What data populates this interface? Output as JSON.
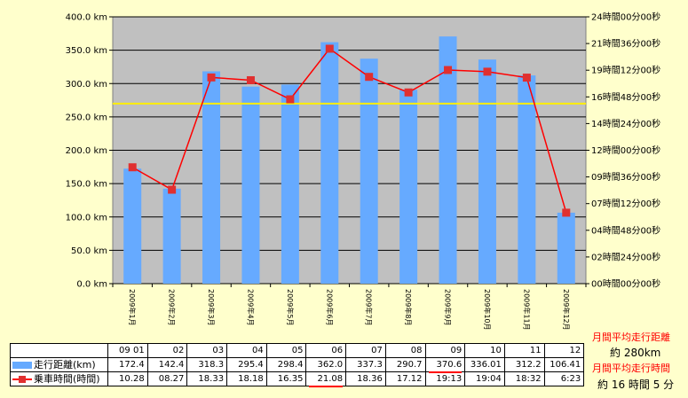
{
  "chart_data": {
    "type": "bar",
    "categories": [
      "2009年1月",
      "2009年2月",
      "2009年3月",
      "2009年4月",
      "2009年5月",
      "2009年6月",
      "2009年7月",
      "2009年8月",
      "2009年9月",
      "2009年10月",
      "2009年11月",
      "2009年12月"
    ],
    "series": [
      {
        "name": "走行距離(km)",
        "type": "bar",
        "axis": "left",
        "color": "#66aaff",
        "values": [
          172.4,
          142.4,
          318.3,
          295.4,
          298.4,
          362.0,
          337.3,
          290.7,
          370.6,
          336.01,
          312.2,
          106.41
        ]
      },
      {
        "name": "乗車時間(時間)",
        "type": "line",
        "axis": "right",
        "color": "#ff0000",
        "marker_color": "#e03030",
        "values_hours": [
          10.467,
          8.45,
          18.55,
          18.3,
          16.583,
          21.133,
          18.6,
          17.2,
          19.217,
          19.067,
          18.533,
          6.383
        ]
      }
    ],
    "yleft": {
      "lim": [
        0,
        400
      ],
      "ticks": [
        "0.0 km",
        "50.0 km",
        "100.0 km",
        "150.0 km",
        "200.0 km",
        "250.0 km",
        "300.0 km",
        "350.0 km",
        "400.0 km"
      ]
    },
    "yright": {
      "lim": [
        0,
        24
      ],
      "ticks": [
        "00時間00分00秒",
        "02時間24分00秒",
        "04時間48分00秒",
        "07時間12分00秒",
        "09時間36分00秒",
        "12時間00分00秒",
        "14時間24分00秒",
        "16時間48分00秒",
        "19時間12分00秒",
        "21時間36分00秒",
        "24時間00分00秒"
      ]
    },
    "reference_line": {
      "value_km": 270,
      "color": "#ffee00"
    },
    "grid": true,
    "plot_bg": "#c0c0c0"
  },
  "table": {
    "header": [
      "09 01",
      "02",
      "03",
      "04",
      "05",
      "06",
      "07",
      "08",
      "09",
      "10",
      "11",
      "12"
    ],
    "rows": [
      {
        "label": "走行距離(km)",
        "swatch": "bar",
        "values": [
          "172.4",
          "142.4",
          "318.3",
          "295.4",
          "298.4",
          "362.0",
          "337.3",
          "290.7",
          "370.6",
          "336.01",
          "312.2",
          "106.41"
        ],
        "highlight": [
          8
        ]
      },
      {
        "label": "乗車時間(時間)",
        "swatch": "line",
        "values": [
          "10.28",
          "08.27",
          "18.33",
          "18.18",
          "16.35",
          "21.08",
          "18.36",
          "17.12",
          "19:13",
          "19:04",
          "18:32",
          "6:23"
        ],
        "highlight": [
          5
        ]
      }
    ]
  },
  "notes": {
    "avg_distance_label": "月間平均走行距離",
    "avg_distance_value": "約 280km",
    "avg_time_label": "月間平均走行時間",
    "avg_time_value": "約 16 時間 5 分"
  }
}
